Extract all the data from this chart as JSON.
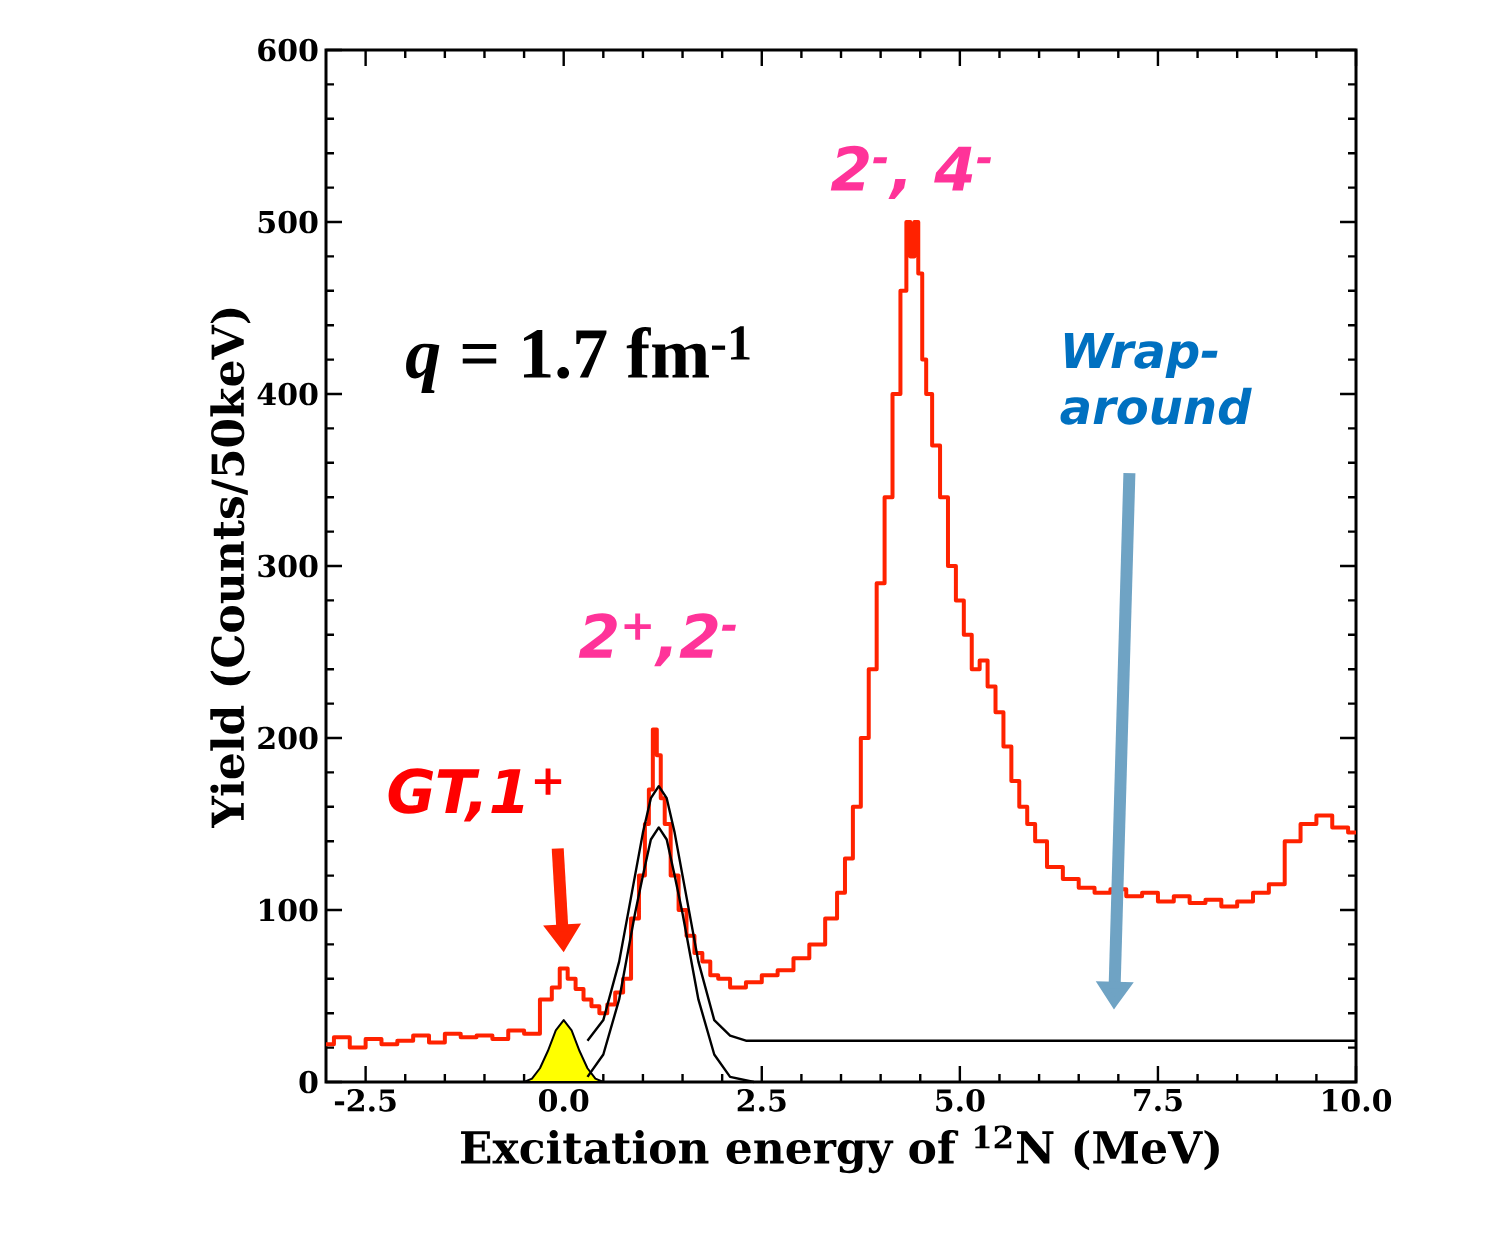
{
  "chart_data": {
    "type": "step",
    "xlabel": "Excitation energy of $^{12}$N (MeV)",
    "ylabel": "Yield (Counts/50keV)",
    "xlim": [
      -3,
      10
    ],
    "ylim": [
      0,
      600
    ],
    "xticks": [
      {
        "value": -2.5,
        "label": "-2.5"
      },
      {
        "value": 0,
        "label": "0.0"
      },
      {
        "value": 2.5,
        "label": "2.5"
      },
      {
        "value": 5,
        "label": "5.0"
      },
      {
        "value": 7.5,
        "label": "7.5"
      },
      {
        "value": 10,
        "label": "10.0"
      }
    ],
    "yticks": [
      0,
      100,
      200,
      300,
      400,
      500,
      600
    ],
    "series": [
      {
        "color": "#ff2200",
        "x": [
          -3,
          -2.8,
          -2.6,
          -2.4,
          -2.2,
          -2,
          -1.8,
          -1.6,
          -1.4,
          -1.2,
          -1,
          -0.8,
          -0.6,
          -0.4,
          -0.2,
          -0.1,
          0,
          0.1,
          0.2,
          0.3,
          0.4,
          0.5,
          0.6,
          0.7,
          0.8,
          0.9,
          1.0,
          1.05,
          1.1,
          1.15,
          1.2,
          1.25,
          1.3,
          1.4,
          1.5,
          1.6,
          1.7,
          1.8,
          1.9,
          2.0,
          2.2,
          2.4,
          2.6,
          2.8,
          3.0,
          3.2,
          3.4,
          3.5,
          3.6,
          3.7,
          3.8,
          3.9,
          4.0,
          4.1,
          4.2,
          4.3,
          4.35,
          4.4,
          4.45,
          4.5,
          4.55,
          4.6,
          4.7,
          4.8,
          4.9,
          5.0,
          5.1,
          5.2,
          5.3,
          5.4,
          5.5,
          5.6,
          5.7,
          5.8,
          5.9,
          6.0,
          6.2,
          6.4,
          6.6,
          6.8,
          7.0,
          7.2,
          7.4,
          7.6,
          7.8,
          8.0,
          8.2,
          8.4,
          8.6,
          8.8,
          9.0,
          9.2,
          9.4,
          9.6,
          9.8,
          10
        ],
        "values": [
          22,
          26,
          20,
          25,
          22,
          24,
          27,
          23,
          28,
          26,
          27,
          25,
          30,
          28,
          48,
          55,
          66,
          60,
          54,
          48,
          44,
          40,
          45,
          52,
          60,
          95,
          120,
          150,
          170,
          205,
          190,
          165,
          150,
          120,
          100,
          85,
          75,
          70,
          62,
          60,
          55,
          58,
          62,
          65,
          72,
          80,
          95,
          110,
          130,
          160,
          200,
          240,
          290,
          340,
          400,
          460,
          500,
          480,
          500,
          470,
          420,
          400,
          370,
          340,
          300,
          280,
          260,
          240,
          245,
          230,
          215,
          195,
          175,
          160,
          150,
          140,
          125,
          118,
          113,
          110,
          112,
          108,
          110,
          105,
          108,
          104,
          106,
          102,
          105,
          110,
          115,
          140,
          150,
          155,
          148,
          145
        ]
      },
      {
        "type": "line",
        "color": "#000000",
        "x": [
          0.3,
          0.5,
          0.7,
          0.9,
          1.0,
          1.1,
          1.2,
          1.3,
          1.4,
          1.5,
          1.7,
          1.9,
          2.1,
          2.4
        ],
        "values": [
          3,
          16,
          48,
          98,
          120,
          141,
          148,
          141,
          120,
          98,
          48,
          16,
          3,
          0
        ]
      },
      {
        "type": "line",
        "color": "#000000",
        "x": [
          0.3,
          0.5,
          0.7,
          0.9,
          1.0,
          1.1,
          1.2,
          1.3,
          1.4,
          1.5,
          1.7,
          1.9,
          2.1,
          2.3,
          2.5,
          10
        ],
        "values": [
          24,
          36,
          70,
          120,
          145,
          165,
          172,
          165,
          145,
          120,
          70,
          36,
          27,
          24,
          24,
          24
        ]
      },
      {
        "type": "area",
        "color": "#ffff00",
        "x": [
          -0.5,
          -0.4,
          -0.3,
          -0.2,
          -0.1,
          0,
          0.1,
          0.2,
          0.3,
          0.4,
          0.5
        ],
        "values": [
          0,
          2,
          8,
          18,
          30,
          36,
          30,
          18,
          8,
          2,
          0
        ]
      }
    ],
    "annotations": [
      "*q* = 1.7 fm$^{-1}$",
      {
        "text": "2$^{-}$, 4$^{-}$",
        "x": 4.4,
        "y": 500
      },
      {
        "text": "2$^{+}$,2$^{-}$",
        "x": 1.2,
        "y": 205
      },
      {
        "text": "GT,1$^{+}$",
        "x": 0,
        "y": 66
      },
      "Wrap-around"
    ]
  }
}
